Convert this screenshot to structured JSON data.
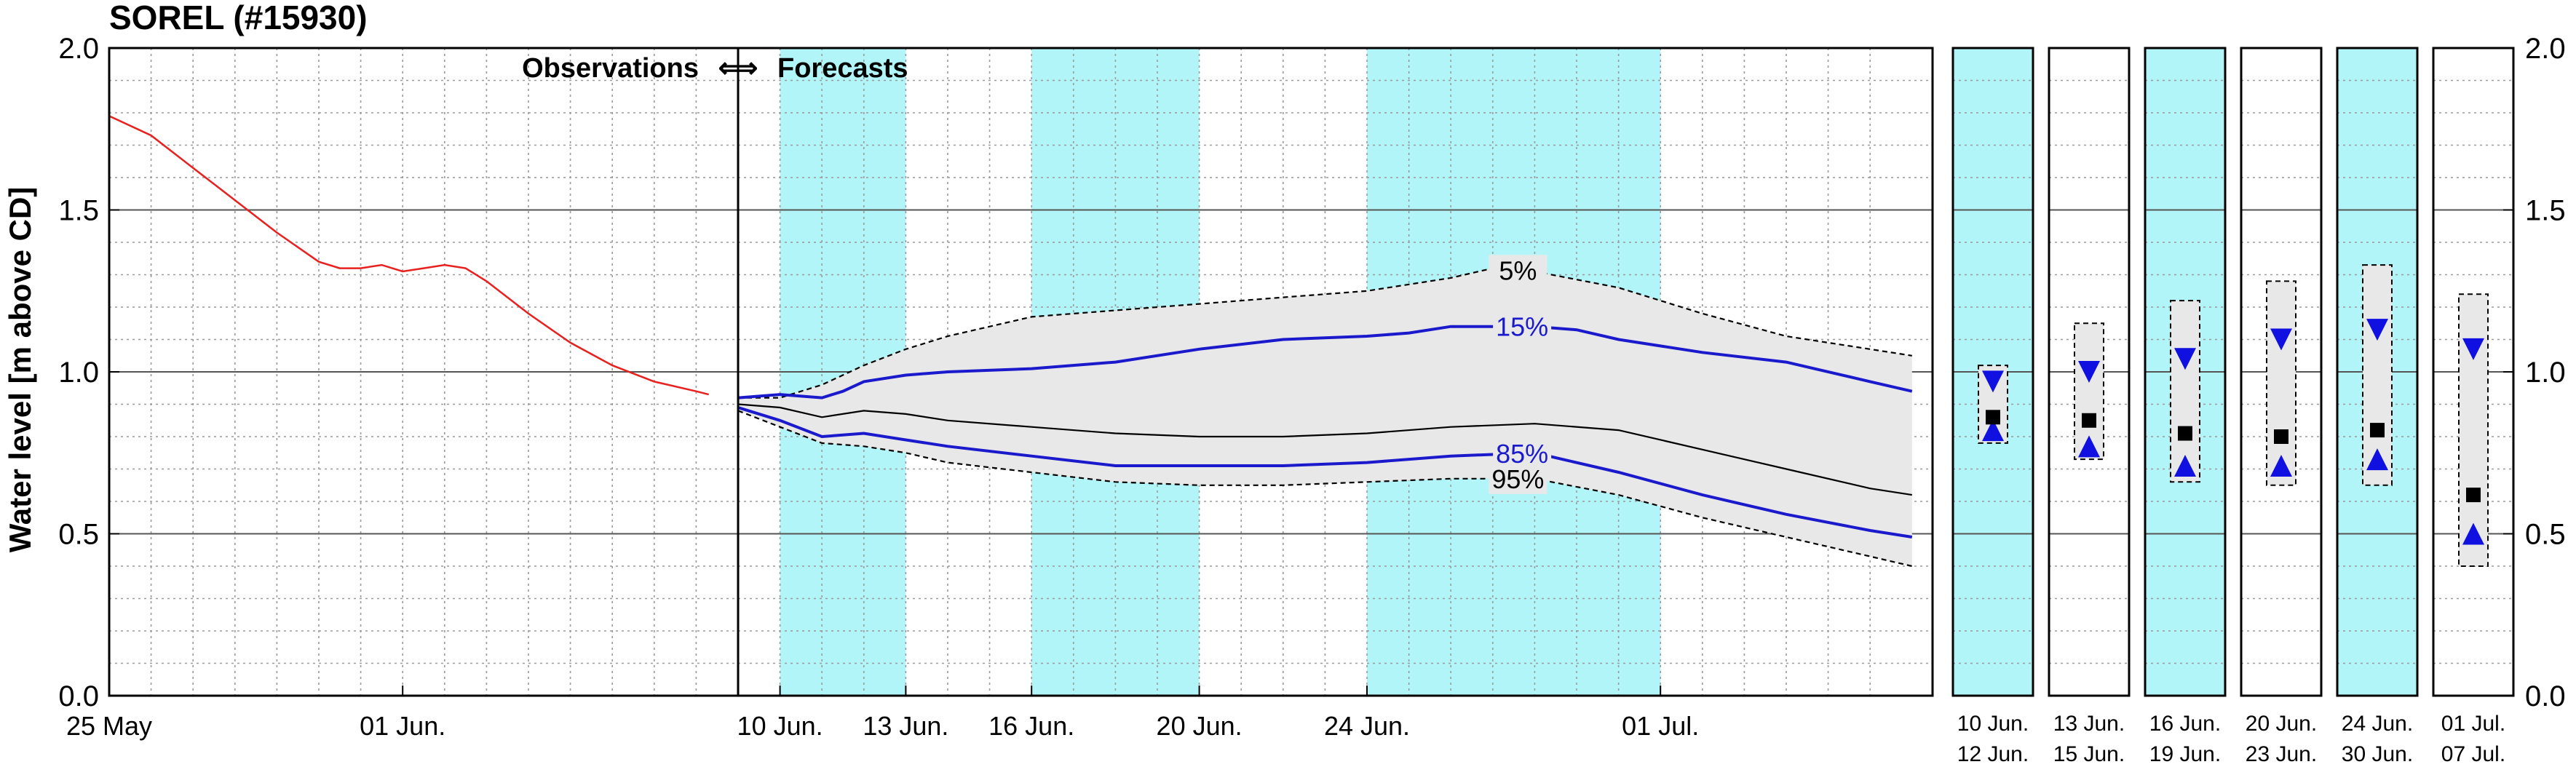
{
  "chart_data": {
    "type": "line",
    "title": "SOREL (#15930)",
    "ylabel": "Water level [m above CD]",
    "ylim": [
      0.0,
      2.0
    ],
    "yticks": [
      "0.0",
      "0.5",
      "1.0",
      "1.5",
      "2.0"
    ],
    "grid": true,
    "x_start": "25 May",
    "xticks": [
      {
        "day": 0,
        "label": "25 May"
      },
      {
        "day": 7,
        "label": "01 Jun."
      },
      {
        "day": 16,
        "label": "10 Jun."
      },
      {
        "day": 19,
        "label": "13 Jun."
      },
      {
        "day": 22,
        "label": "16 Jun."
      },
      {
        "day": 26,
        "label": "20 Jun."
      },
      {
        "day": 30,
        "label": "24 Jun."
      },
      {
        "day": 37,
        "label": "01 Jul."
      }
    ],
    "divider_day": 15,
    "divider_label_left": "Observations",
    "divider_label_right": "Forecasts",
    "divider_arrow": "⟺",
    "x_max_day": 43,
    "shaded_periods": [
      [
        16,
        19
      ],
      [
        22,
        26
      ],
      [
        30,
        37
      ]
    ],
    "shade_color": "#b2f5f8",
    "band_color": "#e8e8e8",
    "observations": {
      "color": "#e8201e",
      "x": [
        0,
        1,
        2,
        3,
        4,
        5,
        5.5,
        6,
        6.5,
        7,
        7.5,
        8,
        8.5,
        9,
        10,
        11,
        12,
        13,
        14,
        14.3
      ],
      "y": [
        1.79,
        1.73,
        1.63,
        1.53,
        1.43,
        1.34,
        1.32,
        1.32,
        1.33,
        1.31,
        1.32,
        1.33,
        1.32,
        1.28,
        1.18,
        1.09,
        1.02,
        0.97,
        0.94,
        0.93
      ]
    },
    "series": [
      {
        "name": "5%",
        "style": "dashed",
        "color": "#000000",
        "x": [
          15,
          16,
          17,
          18,
          19,
          20,
          22,
          24,
          26,
          28,
          30,
          32,
          33,
          34,
          36,
          38,
          40,
          42,
          43
        ],
        "y": [
          0.92,
          0.92,
          0.96,
          1.02,
          1.07,
          1.11,
          1.17,
          1.19,
          1.21,
          1.23,
          1.25,
          1.29,
          1.32,
          1.31,
          1.26,
          1.18,
          1.11,
          1.07,
          1.05
        ]
      },
      {
        "name": "15%",
        "style": "solid",
        "color": "#1a1acc",
        "x": [
          15,
          16,
          17,
          17.5,
          18,
          19,
          20,
          22,
          24,
          26,
          28,
          30,
          31,
          32,
          33,
          34,
          35,
          36,
          38,
          40,
          42,
          43
        ],
        "y": [
          0.92,
          0.93,
          0.92,
          0.94,
          0.97,
          0.99,
          1.0,
          1.01,
          1.03,
          1.07,
          1.1,
          1.11,
          1.12,
          1.14,
          1.14,
          1.14,
          1.13,
          1.1,
          1.06,
          1.03,
          0.97,
          0.94
        ]
      },
      {
        "name": "50%",
        "style": "solid",
        "color": "#000000",
        "x": [
          15,
          16,
          17,
          18,
          19,
          20,
          22,
          24,
          26,
          28,
          30,
          32,
          34,
          36,
          38,
          40,
          42,
          43
        ],
        "y": [
          0.9,
          0.89,
          0.86,
          0.88,
          0.87,
          0.85,
          0.83,
          0.81,
          0.8,
          0.8,
          0.81,
          0.83,
          0.84,
          0.82,
          0.76,
          0.7,
          0.64,
          0.62
        ]
      },
      {
        "name": "85%",
        "style": "solid",
        "color": "#1a1acc",
        "x": [
          15,
          16,
          17,
          18,
          19,
          20,
          22,
          24,
          26,
          28,
          30,
          32,
          34,
          36,
          38,
          40,
          42,
          43
        ],
        "y": [
          0.89,
          0.85,
          0.8,
          0.81,
          0.79,
          0.77,
          0.74,
          0.71,
          0.71,
          0.71,
          0.72,
          0.74,
          0.75,
          0.69,
          0.62,
          0.56,
          0.51,
          0.49
        ]
      },
      {
        "name": "95%",
        "style": "dashed",
        "color": "#000000",
        "x": [
          15,
          16,
          17,
          18,
          19,
          20,
          22,
          24,
          26,
          28,
          30,
          32,
          34,
          36,
          38,
          40,
          42,
          43
        ],
        "y": [
          0.88,
          0.83,
          0.78,
          0.77,
          0.75,
          0.72,
          0.69,
          0.66,
          0.65,
          0.65,
          0.66,
          0.67,
          0.67,
          0.62,
          0.55,
          0.49,
          0.43,
          0.4
        ]
      }
    ],
    "series_labels": [
      {
        "text": "5%",
        "series": 0,
        "day": 33.6,
        "color": "#000000"
      },
      {
        "text": "15%",
        "series": 1,
        "day": 33.7,
        "color": "#1a1acc"
      },
      {
        "text": "85%",
        "series": 3,
        "day": 33.7,
        "color": "#1a1acc"
      },
      {
        "text": "95%",
        "series": 4,
        "day": 33.6,
        "color": "#000000"
      }
    ],
    "periods": [
      {
        "label_top": "10 Jun.",
        "label_bottom": "12 Jun.",
        "shaded": true,
        "box": [
          0.78,
          1.02
        ],
        "square": 0.86,
        "tri_down": 0.97,
        "tri_up": 0.82
      },
      {
        "label_top": "13 Jun.",
        "label_bottom": "15 Jun.",
        "shaded": false,
        "box": [
          0.73,
          1.15
        ],
        "square": 0.85,
        "tri_down": 1.0,
        "tri_up": 0.77
      },
      {
        "label_top": "16 Jun.",
        "label_bottom": "19 Jun.",
        "shaded": true,
        "box": [
          0.66,
          1.22
        ],
        "square": 0.81,
        "tri_down": 1.04,
        "tri_up": 0.71
      },
      {
        "label_top": "20 Jun.",
        "label_bottom": "23 Jun.",
        "shaded": false,
        "box": [
          0.65,
          1.28
        ],
        "square": 0.8,
        "tri_down": 1.1,
        "tri_up": 0.71
      },
      {
        "label_top": "24 Jun.",
        "label_bottom": "30 Jun.",
        "shaded": true,
        "box": [
          0.65,
          1.33
        ],
        "square": 0.82,
        "tri_down": 1.13,
        "tri_up": 0.73
      },
      {
        "label_top": "01 Jul.",
        "label_bottom": "07 Jul.",
        "shaded": false,
        "box": [
          0.4,
          1.24
        ],
        "square": 0.62,
        "tri_down": 1.07,
        "tri_up": 0.5
      }
    ],
    "marker_colors": {
      "square": "#000000",
      "triangle": "#1010e0"
    }
  }
}
